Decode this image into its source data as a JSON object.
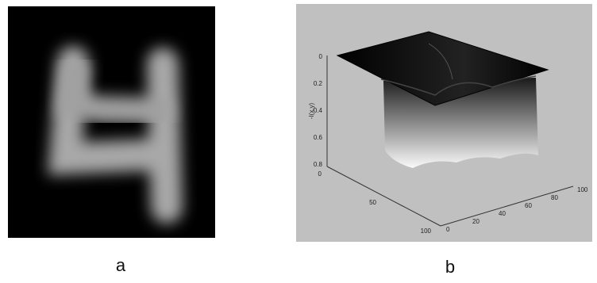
{
  "panels": [
    {
      "label": "a"
    },
    {
      "label": "b",
      "z_axis_label": "-I(x,y)",
      "z_ticks": [
        "0",
        "0.2",
        "0.4",
        "0.6",
        "0.8"
      ],
      "y_ticks": [
        "0",
        "50",
        "100"
      ],
      "x_ticks": [
        "0",
        "20",
        "40",
        "60",
        "80",
        "100"
      ]
    }
  ]
}
